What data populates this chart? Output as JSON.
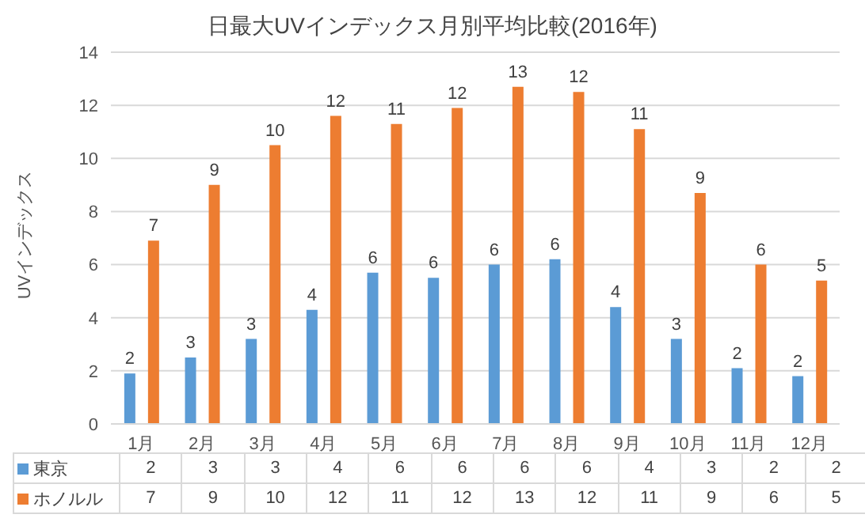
{
  "chart_data": {
    "type": "bar",
    "title": "日最大UVインデックス月別平均比較(2016年)",
    "ylabel": "UVインデックス",
    "categories": [
      "1月",
      "2月",
      "3月",
      "4月",
      "5月",
      "6月",
      "7月",
      "8月",
      "9月",
      "10月",
      "11月",
      "12月"
    ],
    "series": [
      {
        "name": "東京",
        "color": "#5b9bd5",
        "values": [
          1.9,
          2.5,
          3.2,
          4.3,
          5.7,
          5.5,
          6.0,
          6.2,
          4.4,
          3.2,
          2.1,
          1.8
        ],
        "value_labels": [
          "2",
          "3",
          "3",
          "4",
          "6",
          "6",
          "6",
          "6",
          "4",
          "3",
          "2",
          "2"
        ]
      },
      {
        "name": "ホノルル",
        "color": "#ed7d31",
        "values": [
          6.9,
          9.0,
          10.5,
          11.6,
          11.3,
          11.9,
          12.7,
          12.5,
          11.1,
          8.7,
          6.0,
          5.4
        ],
        "value_labels": [
          "7",
          "9",
          "10",
          "12",
          "11",
          "12",
          "13",
          "12",
          "11",
          "9",
          "6",
          "5"
        ]
      }
    ],
    "ylim": [
      0,
      14
    ],
    "yticks": [
      0,
      2,
      4,
      6,
      8,
      10,
      12,
      14
    ],
    "grid": "y",
    "legend": "bottom"
  }
}
